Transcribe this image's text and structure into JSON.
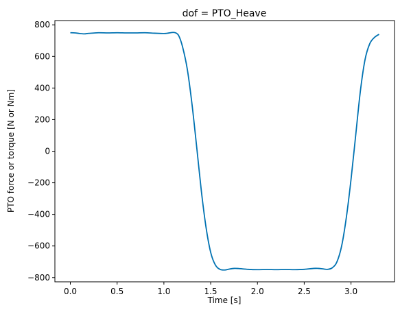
{
  "chart_data": {
    "type": "line",
    "title": "dof = PTO_Heave",
    "xlabel": "Time [s]",
    "ylabel": "PTO force or torque [N or Nm]",
    "xlim": [
      -0.165,
      3.465
    ],
    "ylim": [
      -827,
      827
    ],
    "xticks": [
      0.0,
      0.5,
      1.0,
      1.5,
      2.0,
      2.5,
      3.0
    ],
    "xtick_labels": [
      "0.0",
      "0.5",
      "1.0",
      "1.5",
      "2.0",
      "2.5",
      "3.0"
    ],
    "yticks": [
      -800,
      -600,
      -400,
      -200,
      0,
      200,
      400,
      600,
      800
    ],
    "ytick_labels": [
      "−800",
      "−600",
      "−400",
      "−200",
      "0",
      "200",
      "400",
      "600",
      "800"
    ],
    "grid": false,
    "series": [
      {
        "color": "#0072b2",
        "x": [
          0.0,
          0.05,
          0.1,
          0.15,
          0.2,
          0.3,
          0.4,
          0.5,
          0.6,
          0.7,
          0.8,
          0.9,
          1.0,
          1.05,
          1.1,
          1.13,
          1.16,
          1.2,
          1.25,
          1.3,
          1.35,
          1.4,
          1.45,
          1.5,
          1.55,
          1.6,
          1.65,
          1.7,
          1.75,
          1.8,
          1.9,
          2.0,
          2.1,
          2.2,
          2.3,
          2.4,
          2.5,
          2.6,
          2.65,
          2.7,
          2.75,
          2.8,
          2.85,
          2.9,
          2.95,
          3.0,
          3.05,
          3.1,
          3.15,
          3.2,
          3.25,
          3.3
        ],
        "y": [
          750,
          749,
          745,
          743,
          746,
          750,
          749,
          750,
          749,
          749,
          750,
          747,
          745,
          748,
          752,
          748,
          730,
          660,
          520,
          300,
          30,
          -250,
          -480,
          -640,
          -720,
          -748,
          -752,
          -746,
          -742,
          -743,
          -748,
          -750,
          -749,
          -750,
          -749,
          -750,
          -748,
          -742,
          -742,
          -745,
          -748,
          -738,
          -700,
          -600,
          -420,
          -180,
          100,
          380,
          580,
          680,
          720,
          740
        ]
      }
    ]
  }
}
